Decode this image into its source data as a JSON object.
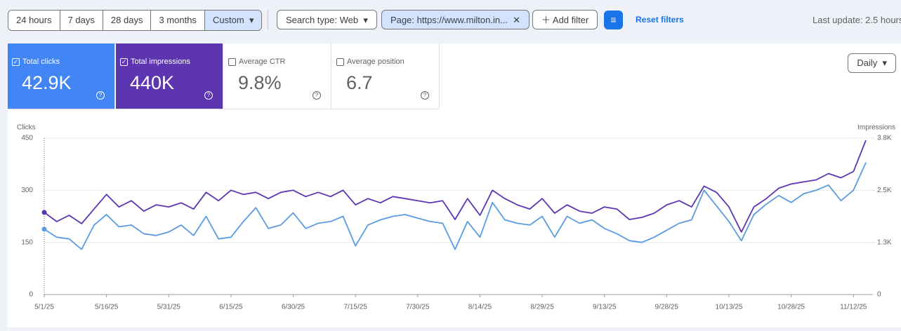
{
  "filters": {
    "date_ranges": [
      "24 hours",
      "7 days",
      "28 days",
      "3 months",
      "Custom"
    ],
    "search_type": "Search type: Web",
    "page_filter": "Page: https://www.milton.in...",
    "add_filter": "Add filter",
    "reset": "Reset filters",
    "last_update": "Last update: 2.5 hours"
  },
  "metrics": [
    {
      "label": "Total clicks",
      "value": "42.9K",
      "checked": true,
      "color": "#4285f4"
    },
    {
      "label": "Total impressions",
      "value": "440K",
      "checked": true,
      "color": "#5e35b1"
    },
    {
      "label": "Average CTR",
      "value": "9.8%",
      "checked": false
    },
    {
      "label": "Average position",
      "value": "6.7",
      "checked": false
    }
  ],
  "granularity": "Daily",
  "chart": {
    "type": "line",
    "y_label": "Clicks",
    "y2_label": "Impressions",
    "x": [
      "5/1/25",
      "5/4/25",
      "5/7/25",
      "5/10/25",
      "5/13/25",
      "5/16/25",
      "5/19/25",
      "5/22/25",
      "5/25/25",
      "5/28/25",
      "5/31/25",
      "6/3/25",
      "6/6/25",
      "6/9/25",
      "6/12/25",
      "6/15/25",
      "6/18/25",
      "6/21/25",
      "6/24/25",
      "6/27/25",
      "6/30/25",
      "7/3/25",
      "7/6/25",
      "7/9/25",
      "7/12/25",
      "7/15/25",
      "7/18/25",
      "7/21/25",
      "7/24/25",
      "7/27/25",
      "7/30/25",
      "8/2/25",
      "8/5/25",
      "8/8/25",
      "8/11/25",
      "8/14/25",
      "8/17/25",
      "8/20/25",
      "8/23/25",
      "8/26/25",
      "8/29/25",
      "9/1/25",
      "9/4/25",
      "9/7/25",
      "9/10/25",
      "9/13/25",
      "9/16/25",
      "9/19/25",
      "9/22/25",
      "9/25/25",
      "9/28/25",
      "10/1/25",
      "10/4/25",
      "10/7/25",
      "10/10/25",
      "10/13/25",
      "10/16/25",
      "10/19/25",
      "10/22/25",
      "10/25/25",
      "10/28/25",
      "10/31/25",
      "11/3/25",
      "11/6/25",
      "11/9/25",
      "11/12/25",
      "11/15/25"
    ],
    "xticks": [
      "5/1/25",
      "5/16/25",
      "5/31/25",
      "6/15/25",
      "6/30/25",
      "7/15/25",
      "7/30/25",
      "8/14/25",
      "8/29/25",
      "9/13/25",
      "9/28/25",
      "10/13/25",
      "10/28/25",
      "11/12/25"
    ],
    "ylim": [
      0,
      450
    ],
    "yticks": [
      0,
      150,
      300,
      450
    ],
    "y2lim": [
      0,
      3750
    ],
    "y2ticks": [
      0,
      {
        "value": 1250,
        "label": "1.3K"
      },
      {
        "value": 2500,
        "label": "2.5K"
      },
      {
        "value": 3750,
        "label": "3.8K"
      }
    ],
    "grid": true,
    "series": [
      {
        "name": "Total clicks",
        "color": "#5b9be0",
        "values": [
          188,
          165,
          160,
          130,
          200,
          230,
          195,
          200,
          175,
          170,
          180,
          200,
          170,
          225,
          160,
          165,
          210,
          250,
          190,
          200,
          235,
          190,
          205,
          210,
          225,
          140,
          200,
          215,
          225,
          230,
          220,
          210,
          205,
          130,
          210,
          165,
          265,
          215,
          205,
          200,
          225,
          165,
          225,
          205,
          215,
          190,
          175,
          155,
          150,
          165,
          185,
          205,
          215,
          300,
          255,
          210,
          155,
          230,
          260,
          285,
          265,
          290,
          300,
          315,
          270,
          300,
          380
        ]
      },
      {
        "name": "Total impressions",
        "color": "#5e35b1",
        "axis": "y2",
        "values": [
          1970,
          1750,
          1900,
          1700,
          2050,
          2400,
          2100,
          2250,
          2000,
          2150,
          2100,
          2200,
          2050,
          2450,
          2250,
          2500,
          2400,
          2450,
          2300,
          2450,
          2500,
          2350,
          2450,
          2350,
          2500,
          2150,
          2300,
          2200,
          2350,
          2300,
          2250,
          2200,
          2250,
          1800,
          2300,
          1900,
          2500,
          2300,
          2150,
          2050,
          2300,
          1950,
          2150,
          2000,
          1950,
          2100,
          2050,
          1800,
          1850,
          1950,
          2150,
          2250,
          2100,
          2600,
          2450,
          2100,
          1500,
          2100,
          2300,
          2550,
          2650,
          2700,
          2750,
          2900,
          2800,
          2950,
          3700
        ]
      }
    ]
  }
}
